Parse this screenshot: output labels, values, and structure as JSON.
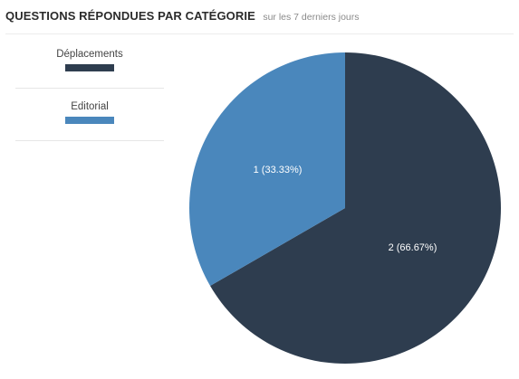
{
  "header": {
    "title": "QUESTIONS RÉPONDUES PAR CATÉGORIE",
    "subtitle": "sur les 7 derniers jours"
  },
  "chart_data": {
    "type": "pie",
    "title": "QUESTIONS RÉPONDUES PAR CATÉGORIE",
    "subtitle": "sur les 7 derniers jours",
    "legend_position": "left",
    "categories": [
      "Déplacements",
      "Editorial"
    ],
    "values": [
      2,
      1
    ],
    "percentages": [
      66.67,
      33.33
    ],
    "slice_labels": [
      "2 (66.67%)",
      "1 (33.33%)"
    ],
    "colors": [
      "#2e3d4f",
      "#4a87bc"
    ]
  }
}
